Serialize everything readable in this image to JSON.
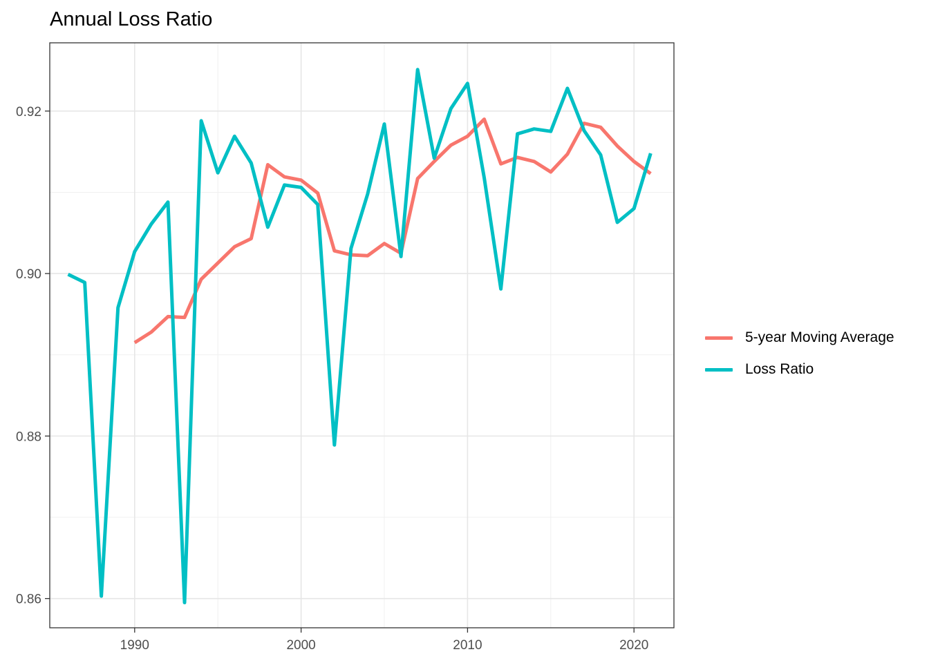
{
  "chart_data": {
    "type": "line",
    "title": "Annual Loss Ratio",
    "xlabel": "",
    "ylabel": "",
    "xlim": [
      1984.9,
      2022.4
    ],
    "ylim": [
      0.8564,
      0.9284
    ],
    "x_ticks": [
      1990,
      2000,
      2010,
      2020
    ],
    "y_ticks": [
      0.86,
      0.88,
      0.9,
      0.92
    ],
    "y_tick_labels": [
      "0.86",
      "0.88",
      "0.90",
      "0.92"
    ],
    "grid": true,
    "legend_position": "right",
    "series": [
      {
        "name": "5-year Moving Average",
        "color": "#F8766D",
        "x": [
          1990,
          1991,
          1992,
          1993,
          1994,
          1995,
          1996,
          1997,
          1998,
          1999,
          2000,
          2001,
          2002,
          2003,
          2004,
          2005,
          2006,
          2007,
          2008,
          2009,
          2010,
          2011,
          2012,
          2013,
          2014,
          2015,
          2016,
          2017,
          2018,
          2019,
          2020,
          2021
        ],
        "values": [
          0.8915,
          0.8928,
          0.8947,
          0.8946,
          0.8993,
          0.9013,
          0.9033,
          0.9043,
          0.9134,
          0.9119,
          0.9115,
          0.9099,
          0.9028,
          0.9023,
          0.9022,
          0.9037,
          0.9025,
          0.9117,
          0.9138,
          0.9158,
          0.9169,
          0.919,
          0.9135,
          0.9143,
          0.9138,
          0.9125,
          0.9147,
          0.9185,
          0.918,
          0.9157,
          0.9138,
          0.9123
        ]
      },
      {
        "name": "Loss Ratio",
        "color": "#00BFC4",
        "x": [
          1986,
          1987,
          1988,
          1989,
          1990,
          1991,
          1992,
          1993,
          1994,
          1995,
          1996,
          1997,
          1998,
          1999,
          2000,
          2001,
          2002,
          2003,
          2004,
          2005,
          2006,
          2007,
          2008,
          2009,
          2010,
          2011,
          2012,
          2013,
          2014,
          2015,
          2016,
          2017,
          2018,
          2019,
          2020,
          2021
        ],
        "values": [
          0.8999,
          0.8989,
          0.8603,
          0.8958,
          0.9027,
          0.9061,
          0.9088,
          0.8595,
          0.9188,
          0.9124,
          0.9169,
          0.9136,
          0.9057,
          0.9109,
          0.9106,
          0.9085,
          0.8789,
          0.9031,
          0.9098,
          0.9184,
          0.9021,
          0.9251,
          0.9142,
          0.9203,
          0.9234,
          0.9118,
          0.8981,
          0.9172,
          0.9178,
          0.9175,
          0.9228,
          0.9176,
          0.9146,
          0.9063,
          0.908,
          0.9148
        ]
      }
    ]
  }
}
